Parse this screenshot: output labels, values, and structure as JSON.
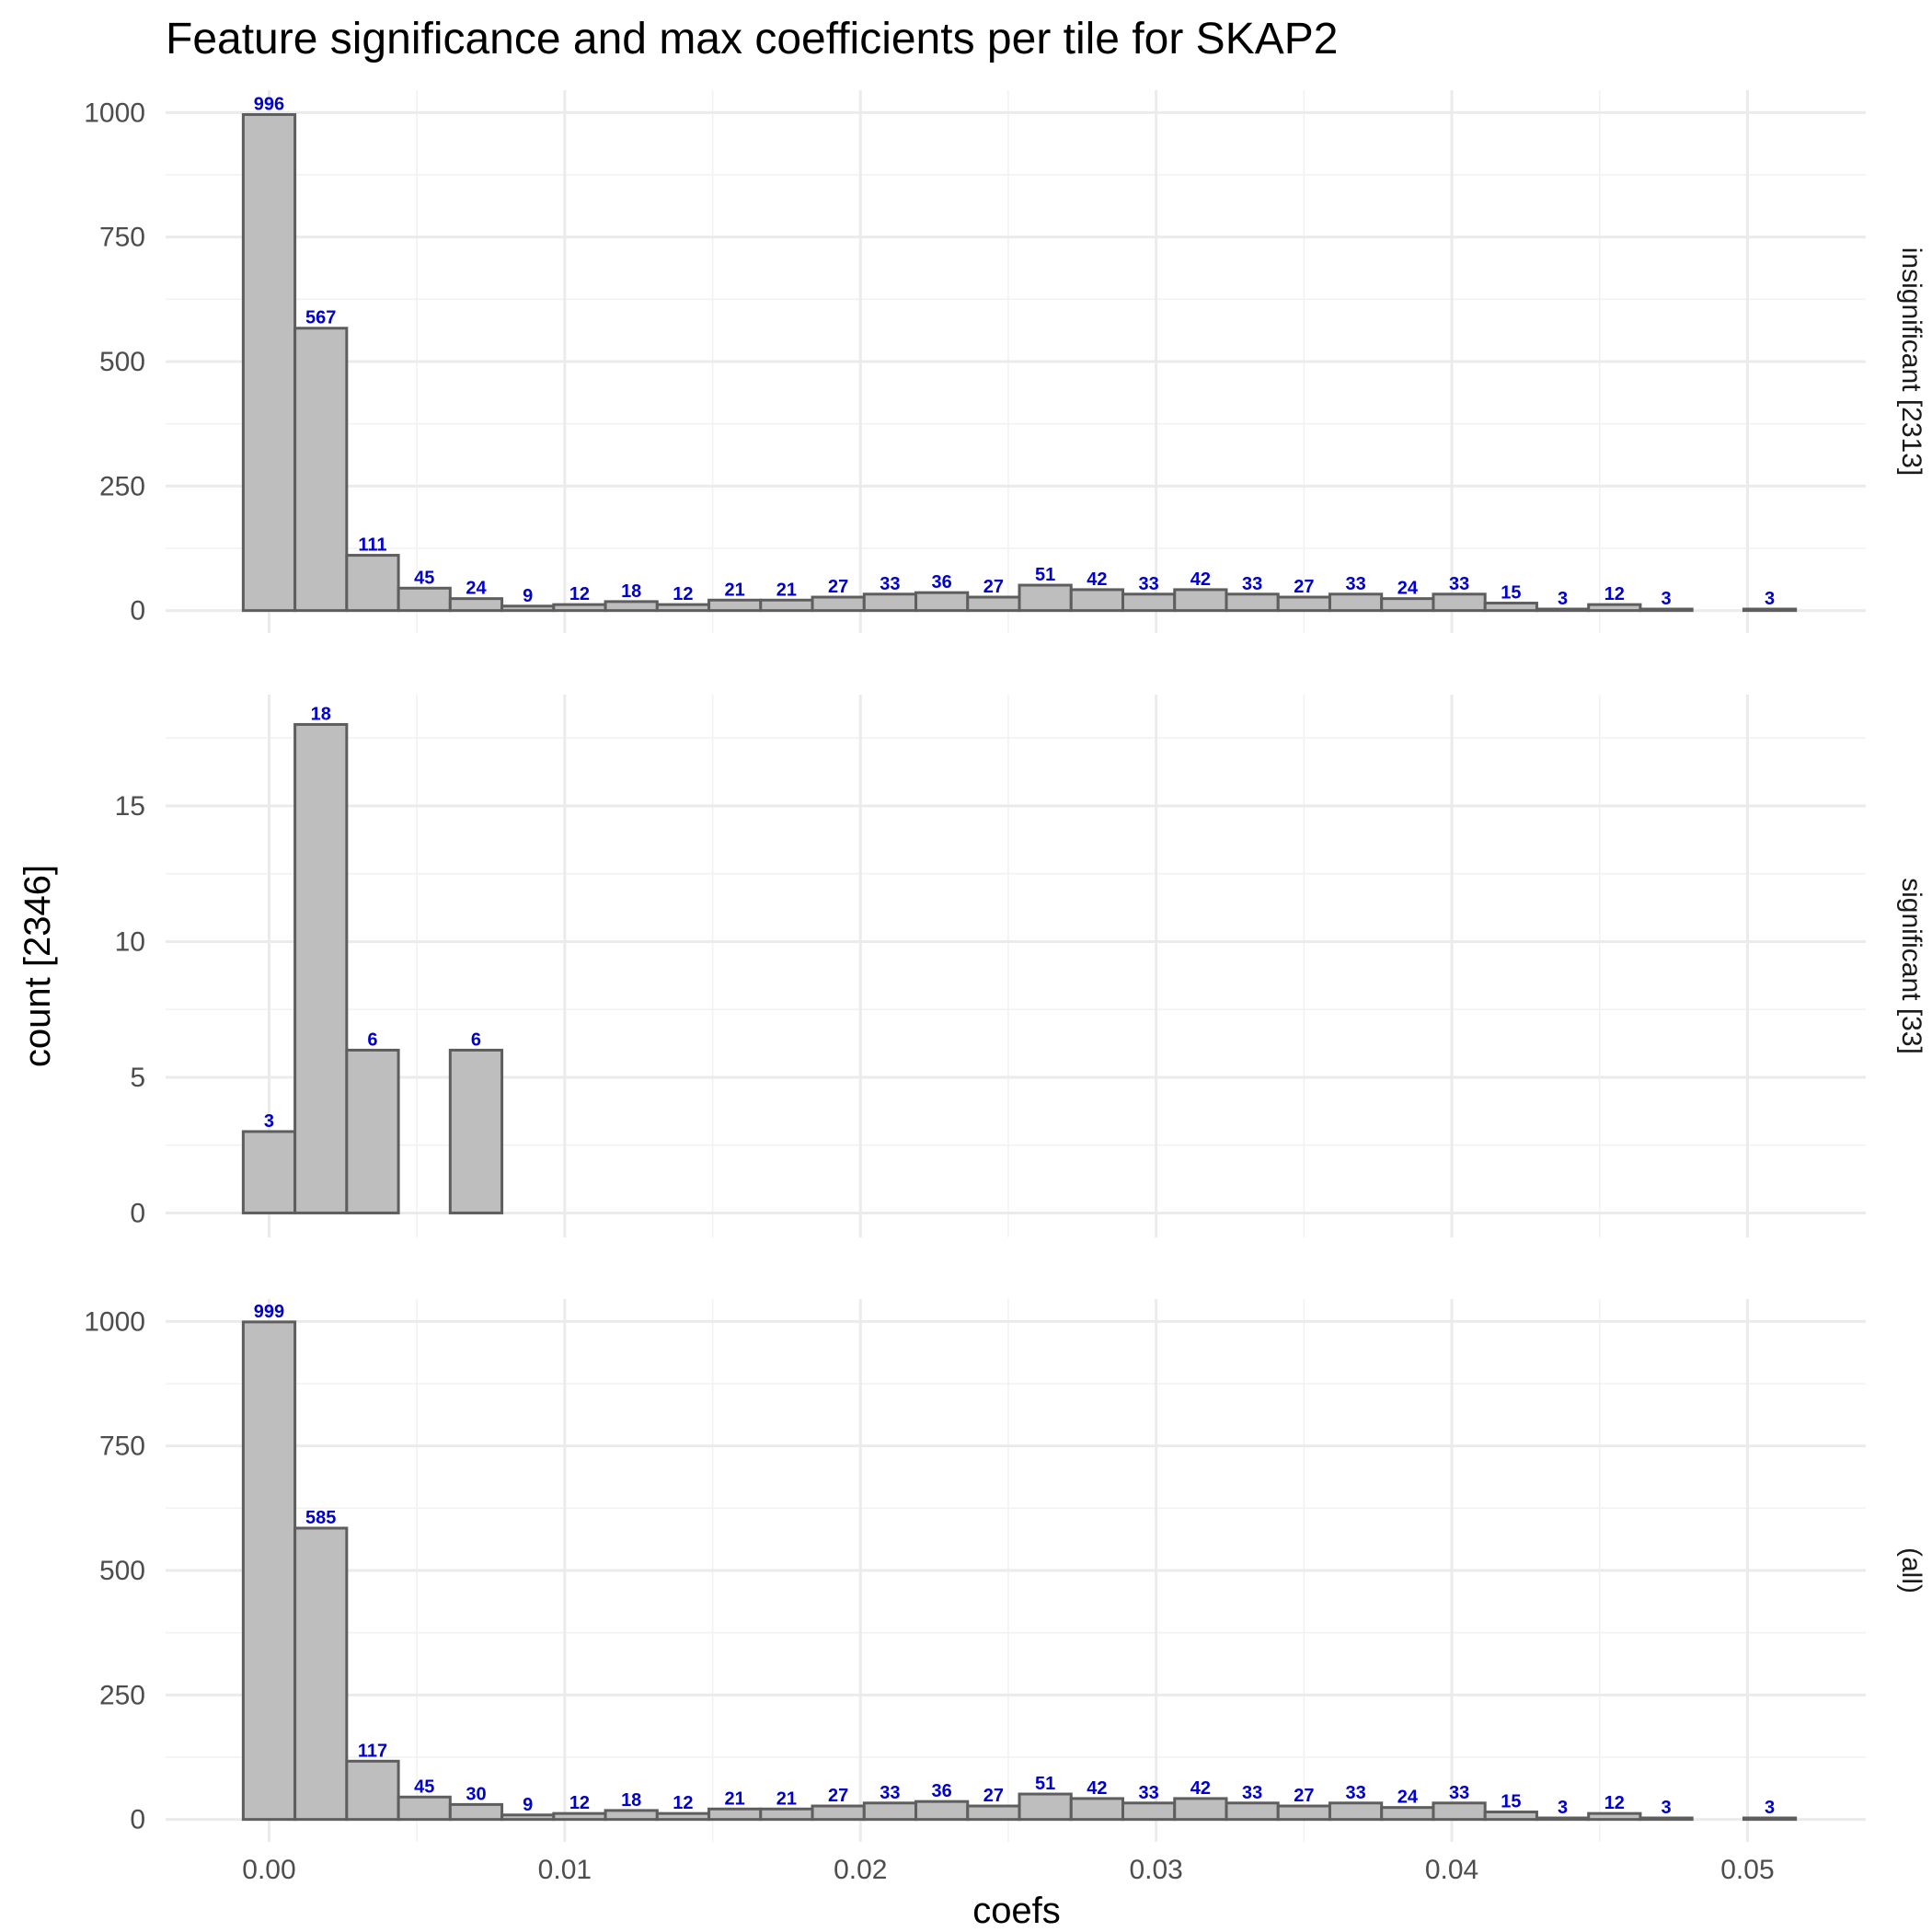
{
  "chart_data": {
    "type": "bar",
    "title": "Feature significance and max coefficients per tile for SKAP2",
    "xlabel": "coefs",
    "ylabel": "count [2346]",
    "bin_width": 0.00175,
    "x_ticks": [
      0.0,
      0.01,
      0.02,
      0.03,
      0.04,
      0.05
    ],
    "x_tick_labels": [
      "0.00",
      "0.01",
      "0.02",
      "0.03",
      "0.04",
      "0.05"
    ],
    "xlim": [
      -0.0035,
      0.054
    ],
    "bin_centers": [
      0.0,
      0.00175,
      0.0035,
      0.00525,
      0.007,
      0.00875,
      0.0105,
      0.01225,
      0.014,
      0.01575,
      0.0175,
      0.01925,
      0.021,
      0.02275,
      0.0245,
      0.02625,
      0.028,
      0.02975,
      0.0315,
      0.03325,
      0.035,
      0.03675,
      0.0385,
      0.04025,
      0.042,
      0.04375,
      0.0455,
      0.04725,
      0.049,
      0.05075
    ],
    "grid": true,
    "label_color": "#0000cc",
    "panels": [
      {
        "strip": "insignificant [2313]",
        "y_ticks": [
          0,
          250,
          500,
          750,
          1000
        ],
        "ylim": [
          -45,
          1045
        ],
        "values": [
          996,
          567,
          111,
          45,
          24,
          9,
          12,
          18,
          12,
          21,
          21,
          27,
          33,
          36,
          27,
          51,
          42,
          33,
          42,
          33,
          27,
          33,
          24,
          33,
          15,
          3,
          12,
          3,
          0,
          3
        ]
      },
      {
        "strip": "significant [33]",
        "y_ticks": [
          0,
          5,
          10,
          15
        ],
        "ylim": [
          -0.9,
          19.1
        ],
        "values": [
          3,
          18,
          6,
          0,
          6,
          0,
          0,
          0,
          0,
          0,
          0,
          0,
          0,
          0,
          0,
          0,
          0,
          0,
          0,
          0,
          0,
          0,
          0,
          0,
          0,
          0,
          0,
          0,
          0,
          0
        ]
      },
      {
        "strip": "(all)",
        "y_ticks": [
          0,
          250,
          500,
          750,
          1000
        ],
        "ylim": [
          -45,
          1045
        ],
        "values": [
          999,
          585,
          117,
          45,
          30,
          9,
          12,
          18,
          12,
          21,
          21,
          27,
          33,
          36,
          27,
          51,
          42,
          33,
          42,
          33,
          27,
          33,
          24,
          33,
          15,
          3,
          12,
          3,
          0,
          3
        ]
      }
    ]
  }
}
